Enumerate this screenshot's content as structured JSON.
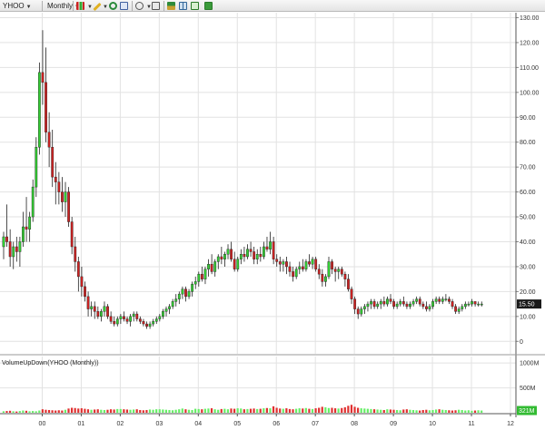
{
  "toolbar": {
    "symbol": "YHOO",
    "period": "Monthly",
    "icons": [
      "candlestick-chart-icon",
      "pencil-draw-icon",
      "crosshair-icon",
      "cursor-icon",
      "zoom-icon",
      "search-icon",
      "layout-icon",
      "grid-icon",
      "table-icon",
      "export-icon"
    ]
  },
  "colors": {
    "up": "#33cc33",
    "down": "#cc2222",
    "volume_up": "#66ee66",
    "volume_down": "#e03030",
    "grid": "#e2e2e2",
    "current_price_bg": "#1a1a1a",
    "current_volume_bg": "#33bb33"
  },
  "price_panel": {
    "current_price_label": "15.50"
  },
  "volume_panel": {
    "title": "VolumeUpDown(YHOO (Monthly))",
    "current_volume_label": "321M"
  },
  "chart_data": {
    "type": "candlestick",
    "x_tick_labels": [
      "00",
      "01",
      "02",
      "03",
      "04",
      "05",
      "06",
      "07",
      "08",
      "09",
      "10",
      "11",
      "12"
    ],
    "y_ticks": [
      0,
      10,
      20,
      30,
      40,
      50,
      60,
      70,
      80,
      90,
      100,
      110,
      120,
      130
    ],
    "y_tick_labels": [
      "0",
      "10.00",
      "20.00",
      "30.00",
      "40.00",
      "50.00",
      "60.00",
      "70.00",
      "80.00",
      "90.00",
      "100.00",
      "110.00",
      "120.00",
      "130.00"
    ],
    "ylim": [
      -5,
      132
    ],
    "volume_ticks": [
      500,
      1000
    ],
    "volume_tick_labels": [
      "500M",
      "1000M"
    ],
    "volume_ylim": [
      0,
      1130
    ],
    "start_month": "1999-01",
    "ohlc": [
      [
        38,
        44,
        33,
        42
      ],
      [
        42,
        55,
        38,
        40
      ],
      [
        40,
        45,
        30,
        34
      ],
      [
        34,
        40,
        29,
        38
      ],
      [
        38,
        42,
        32,
        36
      ],
      [
        36,
        42,
        30,
        40
      ],
      [
        40,
        52,
        38,
        46
      ],
      [
        46,
        58,
        40,
        45
      ],
      [
        45,
        52,
        40,
        50
      ],
      [
        50,
        65,
        48,
        62
      ],
      [
        62,
        82,
        58,
        78
      ],
      [
        78,
        112,
        75,
        108
      ],
      [
        108,
        125,
        95,
        104
      ],
      [
        104,
        118,
        80,
        84
      ],
      [
        84,
        92,
        70,
        78
      ],
      [
        78,
        85,
        62,
        66
      ],
      [
        66,
        72,
        55,
        64
      ],
      [
        64,
        68,
        55,
        60
      ],
      [
        60,
        66,
        52,
        56
      ],
      [
        56,
        64,
        50,
        60
      ],
      [
        60,
        62,
        46,
        48
      ],
      [
        48,
        50,
        35,
        38
      ],
      [
        38,
        42,
        28,
        32
      ],
      [
        32,
        34,
        20,
        26
      ],
      [
        26,
        30,
        18,
        22
      ],
      [
        22,
        24,
        16,
        18
      ],
      [
        18,
        20,
        10,
        13
      ],
      [
        13,
        16,
        10,
        14
      ],
      [
        14,
        16,
        9,
        12
      ],
      [
        12,
        14,
        9,
        10
      ],
      [
        10,
        13,
        8,
        12
      ],
      [
        12,
        16,
        10,
        14
      ],
      [
        14,
        15,
        9,
        10
      ],
      [
        10,
        12,
        7,
        8
      ],
      [
        8,
        10,
        6,
        7
      ],
      [
        7,
        10,
        6,
        9
      ],
      [
        9,
        11,
        7,
        10
      ],
      [
        10,
        12,
        8,
        9
      ],
      [
        9,
        10,
        7,
        8
      ],
      [
        8,
        11,
        6,
        10
      ],
      [
        10,
        12,
        8,
        11
      ],
      [
        11,
        12,
        8,
        9
      ],
      [
        9,
        10,
        7,
        8
      ],
      [
        8,
        9,
        6,
        7
      ],
      [
        7,
        8,
        5,
        6
      ],
      [
        6,
        8,
        5,
        7
      ],
      [
        7,
        9,
        6,
        8
      ],
      [
        8,
        10,
        7,
        9
      ],
      [
        9,
        11,
        8,
        10
      ],
      [
        10,
        13,
        9,
        12
      ],
      [
        12,
        14,
        10,
        13
      ],
      [
        13,
        15,
        11,
        14
      ],
      [
        14,
        17,
        13,
        16
      ],
      [
        16,
        19,
        14,
        17
      ],
      [
        17,
        20,
        15,
        19
      ],
      [
        19,
        22,
        17,
        21
      ],
      [
        21,
        22,
        16,
        18
      ],
      [
        18,
        21,
        17,
        20
      ],
      [
        20,
        24,
        18,
        23
      ],
      [
        23,
        26,
        21,
        24
      ],
      [
        24,
        28,
        22,
        27
      ],
      [
        27,
        30,
        24,
        25
      ],
      [
        25,
        30,
        23,
        29
      ],
      [
        29,
        33,
        26,
        31
      ],
      [
        31,
        35,
        27,
        28
      ],
      [
        28,
        33,
        26,
        32
      ],
      [
        32,
        35,
        29,
        34
      ],
      [
        34,
        38,
        31,
        33
      ],
      [
        33,
        36,
        30,
        35
      ],
      [
        35,
        39,
        33,
        37
      ],
      [
        37,
        40,
        32,
        33
      ],
      [
        33,
        36,
        28,
        29
      ],
      [
        29,
        34,
        28,
        33
      ],
      [
        33,
        37,
        31,
        35
      ],
      [
        35,
        38,
        32,
        34
      ],
      [
        34,
        39,
        33,
        37
      ],
      [
        37,
        40,
        34,
        36
      ],
      [
        36,
        38,
        31,
        33
      ],
      [
        33,
        37,
        31,
        35
      ],
      [
        35,
        38,
        32,
        34
      ],
      [
        34,
        40,
        33,
        38
      ],
      [
        38,
        42,
        36,
        37
      ],
      [
        37,
        44,
        35,
        40
      ],
      [
        40,
        42,
        31,
        33
      ],
      [
        33,
        35,
        30,
        32
      ],
      [
        32,
        34,
        28,
        31
      ],
      [
        31,
        33,
        28,
        32
      ],
      [
        32,
        34,
        27,
        30
      ],
      [
        30,
        32,
        26,
        28
      ],
      [
        28,
        30,
        24,
        26
      ],
      [
        26,
        30,
        25,
        29
      ],
      [
        29,
        32,
        27,
        30
      ],
      [
        30,
        33,
        28,
        29
      ],
      [
        29,
        33,
        28,
        32
      ],
      [
        32,
        35,
        30,
        31
      ],
      [
        31,
        34,
        29,
        33
      ],
      [
        33,
        34,
        28,
        29
      ],
      [
        29,
        31,
        25,
        27
      ],
      [
        27,
        29,
        22,
        24
      ],
      [
        24,
        27,
        22,
        26
      ],
      [
        26,
        34,
        25,
        32
      ],
      [
        32,
        33,
        27,
        29
      ],
      [
        29,
        30,
        24,
        28
      ],
      [
        28,
        30,
        25,
        29
      ],
      [
        29,
        30,
        26,
        27
      ],
      [
        27,
        28,
        22,
        25
      ],
      [
        25,
        27,
        20,
        21
      ],
      [
        21,
        22,
        15,
        17
      ],
      [
        17,
        18,
        11,
        13
      ],
      [
        13,
        14,
        9,
        11
      ],
      [
        11,
        14,
        10,
        13
      ],
      [
        13,
        15,
        11,
        14
      ],
      [
        14,
        16,
        12,
        15
      ],
      [
        15,
        17,
        13,
        16
      ],
      [
        16,
        17,
        13,
        14
      ],
      [
        14,
        16,
        13,
        15
      ],
      [
        15,
        17,
        13,
        16
      ],
      [
        16,
        18,
        14,
        15
      ],
      [
        15,
        18,
        14,
        17
      ],
      [
        17,
        19,
        15,
        16
      ],
      [
        16,
        17,
        13,
        14
      ],
      [
        14,
        16,
        13,
        15
      ],
      [
        15,
        17,
        14,
        16
      ],
      [
        16,
        18,
        14,
        15
      ],
      [
        15,
        16,
        13,
        14
      ],
      [
        14,
        16,
        13,
        15
      ],
      [
        15,
        17,
        14,
        16
      ],
      [
        16,
        18,
        15,
        17
      ],
      [
        17,
        18,
        14,
        15
      ],
      [
        15,
        16,
        13,
        14
      ],
      [
        14,
        16,
        12,
        13
      ],
      [
        13,
        15,
        12,
        14
      ],
      [
        14,
        17,
        13,
        16
      ],
      [
        16,
        18,
        15,
        17
      ],
      [
        17,
        18,
        15,
        16
      ],
      [
        16,
        18,
        15,
        17
      ],
      [
        17,
        19,
        16,
        17
      ],
      [
        17,
        18,
        15,
        16
      ],
      [
        16,
        17,
        13,
        14
      ],
      [
        14,
        15,
        11,
        12
      ],
      [
        12,
        14,
        11,
        13
      ],
      [
        13,
        15,
        12,
        14
      ],
      [
        14,
        16,
        13,
        15
      ],
      [
        15,
        16,
        14,
        15
      ],
      [
        15,
        17,
        14,
        16
      ],
      [
        16,
        16,
        14,
        15
      ],
      [
        15,
        16,
        14,
        15
      ],
      [
        15,
        16,
        14,
        15
      ]
    ],
    "volume": [
      30,
      35,
      40,
      30,
      25,
      35,
      45,
      40,
      30,
      35,
      30,
      45,
      70,
      60,
      55,
      50,
      45,
      50,
      45,
      60,
      85,
      100,
      95,
      85,
      90,
      80,
      70,
      60,
      65,
      70,
      60,
      55,
      60,
      70,
      65,
      75,
      75,
      70,
      65,
      60,
      65,
      70,
      55,
      50,
      55,
      65,
      60,
      70,
      70,
      65,
      60,
      55,
      50,
      60,
      70,
      85,
      70,
      60,
      55,
      80,
      75,
      70,
      80,
      85,
      90,
      70,
      60,
      75,
      80,
      70,
      85,
      80,
      90,
      85,
      70,
      75,
      80,
      85,
      75,
      80,
      90,
      95,
      90,
      130,
      100,
      85,
      80,
      90,
      75,
      70,
      80,
      90,
      85,
      95,
      80,
      75,
      90,
      100,
      120,
      110,
      95,
      100,
      90,
      85,
      95,
      110,
      140,
      160,
      120,
      100,
      90,
      85,
      80,
      75,
      70,
      65,
      60,
      55,
      70,
      65,
      60,
      55,
      50,
      65,
      70,
      60,
      55,
      50,
      45,
      55,
      60,
      50,
      55,
      65,
      70,
      60,
      55,
      50,
      45,
      50,
      60,
      55,
      45,
      50,
      40,
      45,
      50,
      45
    ],
    "volume_up_months": [
      50,
      54,
      62,
      65,
      70,
      75,
      78,
      82,
      87,
      92,
      99,
      104,
      108,
      116,
      122,
      129,
      134,
      140,
      143,
      145,
      148,
      151
    ]
  }
}
